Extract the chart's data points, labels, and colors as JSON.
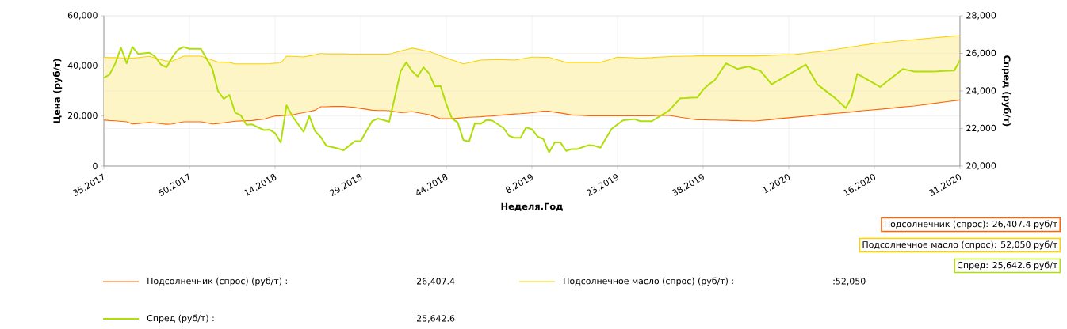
{
  "chart_data": {
    "type": "line",
    "xlabel": "Неделя.Год",
    "ylabel": "Цена (руб/т)",
    "y2label": "Спред (руб/т)",
    "categories": [
      "35.2017",
      null,
      null,
      null,
      null,
      null,
      null,
      null,
      null,
      null,
      null,
      null,
      null,
      null,
      null,
      "50.2017",
      null,
      null,
      null,
      null,
      null,
      null,
      null,
      null,
      null,
      null,
      null,
      null,
      null,
      null,
      "14.2018",
      null,
      null,
      null,
      null,
      null,
      null,
      null,
      null,
      null,
      null,
      null,
      null,
      null,
      null,
      "29.2018",
      null,
      null,
      null,
      null,
      null,
      null,
      null,
      null,
      null,
      null,
      null,
      null,
      null,
      null,
      "44.2018",
      null,
      null,
      null,
      null,
      null,
      null,
      null,
      null,
      null,
      null,
      null,
      null,
      null,
      null,
      "8.2019",
      null,
      null,
      null,
      null,
      null,
      null,
      null,
      null,
      null,
      null,
      null,
      null,
      null,
      null,
      "23.2019",
      null,
      null,
      null,
      null,
      null,
      null,
      null,
      null,
      null,
      null,
      null,
      null,
      null,
      null,
      "38.2019",
      null,
      null,
      null,
      null,
      null,
      null,
      null,
      null,
      null,
      null,
      null,
      null,
      null,
      null,
      "1.2020",
      null,
      null,
      null,
      null,
      null,
      null,
      null,
      null,
      null,
      null,
      null,
      null,
      null,
      null,
      "16.2020",
      null,
      null,
      null,
      null,
      null,
      null,
      null,
      null,
      null,
      null,
      null,
      null,
      null,
      null,
      "31.2020"
    ],
    "ylim": [
      0,
      60000
    ],
    "yticks": [
      {
        "value": 0,
        "label": "0"
      },
      {
        "value": 20000,
        "label": "20,000"
      },
      {
        "value": 40000,
        "label": "40,000"
      },
      {
        "value": 60000,
        "label": "60,000"
      }
    ],
    "y2lim": [
      20000,
      28000
    ],
    "y2ticks": [
      {
        "value": 20000,
        "label": "20,000"
      },
      {
        "value": 22000,
        "label": "22,000"
      },
      {
        "value": 24000,
        "label": "24,000"
      },
      {
        "value": 26000,
        "label": "26,000"
      },
      {
        "value": 28000,
        "label": "28,000"
      }
    ],
    "grid": true,
    "legend": "bottom",
    "series": [
      {
        "name": "Подсолнечник (спрос) (руб/т) :",
        "color": "#ff6600",
        "values": [
          18400,
          18200,
          18100,
          17900,
          17700,
          16800,
          17000,
          17200,
          17400,
          17200,
          16900,
          16700,
          16800,
          17300,
          17700,
          17700,
          17700,
          17700,
          17300,
          16800,
          17000,
          17300,
          17600,
          17900,
          18000,
          18100,
          18200,
          18500,
          18700,
          19400,
          20000,
          20100,
          20300,
          20400,
          20900,
          21300,
          21800,
          22300,
          23700,
          23700,
          23800,
          23800,
          23800,
          23600,
          23400,
          23000,
          22700,
          22300,
          22200,
          22200,
          22100,
          21700,
          21300,
          21500,
          21700,
          21300,
          20900,
          20500,
          19700,
          18900,
          18900,
          18900,
          19100,
          19300,
          19500,
          19600,
          19700,
          19900,
          20000,
          20200,
          20400,
          20600,
          20800,
          20900,
          21100,
          21300,
          21600,
          21900,
          21900,
          21500,
          21200,
          20800,
          20400,
          20300,
          20200,
          20100,
          20100,
          20100,
          20100,
          20100,
          20100,
          20100,
          20100,
          20100,
          20100,
          20100,
          20100,
          20200,
          20200,
          20200,
          19900,
          19500,
          19200,
          18800,
          18500,
          18500,
          18400,
          18400,
          18300,
          18300,
          18200,
          18200,
          18100,
          18100,
          18000,
          18200,
          18400,
          18600,
          18900,
          19100,
          19300,
          19500,
          19700,
          19900,
          20100,
          20400,
          20600,
          20800,
          21000,
          21200,
          21400,
          21600,
          21900,
          22100,
          22300,
          22500,
          22700,
          22900,
          23100,
          23400,
          23600,
          23800,
          24000,
          24300,
          24600,
          24900,
          25200,
          25500,
          25800,
          26100,
          26407.4
        ]
      },
      {
        "name": "Подсолнечное масло (спрос) (руб/т) :",
        "color": "#fcd202",
        "values": [
          43400,
          43300,
          43300,
          43200,
          43200,
          43100,
          43300,
          43600,
          43800,
          43200,
          42500,
          41900,
          41900,
          42900,
          43900,
          43900,
          43900,
          43900,
          43100,
          42300,
          41500,
          41500,
          41400,
          40800,
          40800,
          40800,
          40800,
          40800,
          40800,
          40900,
          41100,
          41200,
          43900,
          43800,
          43700,
          43600,
          44000,
          44400,
          45000,
          44800,
          44800,
          44800,
          44800,
          44700,
          44700,
          44700,
          44700,
          44700,
          44700,
          44700,
          44700,
          45300,
          45900,
          46500,
          47100,
          46700,
          46200,
          45800,
          44900,
          44000,
          43200,
          42400,
          41600,
          40800,
          41300,
          41800,
          42300,
          42400,
          42500,
          42600,
          42500,
          42400,
          42300,
          42700,
          43100,
          43500,
          43500,
          43400,
          43400,
          42700,
          42100,
          41400,
          41400,
          41400,
          41400,
          41400,
          41400,
          41400,
          42100,
          42800,
          43500,
          43400,
          43300,
          43200,
          43100,
          43200,
          43300,
          43500,
          43600,
          43700,
          43800,
          43800,
          43900,
          43900,
          44000,
          44000,
          44000,
          44000,
          44000,
          44000,
          44000,
          44000,
          44000,
          44000,
          44000,
          44100,
          44100,
          44200,
          44300,
          44400,
          44400,
          44500,
          44800,
          45100,
          45400,
          45600,
          45900,
          46200,
          46500,
          46900,
          47200,
          47600,
          47900,
          48300,
          48600,
          49000,
          49200,
          49400,
          49600,
          49900,
          50100,
          50300,
          50500,
          50700,
          50900,
          51100,
          51300,
          51500,
          51700,
          51900,
          52050
        ],
        "upper": [
          43400,
          43300,
          43300,
          43200,
          43200,
          43100,
          43300,
          43600,
          43800,
          43200,
          42500,
          41900,
          41900,
          42900,
          43900,
          43900,
          43900,
          43900,
          43100,
          42300,
          41500,
          41500,
          41400,
          40800,
          40800,
          40800,
          40800,
          40800,
          40800,
          40900,
          41100,
          41200,
          43900,
          43800,
          43700,
          43600,
          44000,
          44400,
          45000,
          44800,
          44800,
          44800,
          44800,
          44700,
          44700,
          44700,
          44700,
          44700,
          44700,
          44700,
          44700,
          45300,
          45900,
          46500,
          47100,
          46700,
          46200,
          45800,
          44900,
          44000,
          43200,
          42400,
          41600,
          40800,
          41300,
          41800,
          42300,
          42400,
          42500,
          42600,
          42500,
          42400,
          42300,
          42700,
          43100,
          43500,
          43500,
          43400,
          43400,
          42700,
          42100,
          41400,
          41400,
          41400,
          41400,
          41400,
          41400,
          41400,
          42100,
          42800,
          43500,
          43400,
          43300,
          43200,
          43100,
          43200,
          43300,
          43500,
          43600,
          43700,
          43800,
          43800,
          43900,
          43900,
          44000,
          44000,
          44000,
          44000,
          44000,
          44000,
          44000,
          44000,
          44000,
          44000,
          44000,
          44100,
          44100,
          44200,
          44300,
          44400,
          44400,
          44500,
          44800,
          45100,
          45400,
          45600,
          45900,
          46200,
          46500,
          46900,
          47200,
          47600,
          47900,
          48300,
          48600,
          49000,
          49200,
          49400,
          49600,
          49900,
          50100,
          50300,
          50500,
          50700,
          50900,
          51100,
          51300,
          51500,
          51700,
          51900,
          52050
        ],
        "lower": [
          18400,
          18200,
          18100,
          17900,
          17700,
          16800,
          17000,
          17200,
          17400,
          17200,
          16900,
          16700,
          16800,
          17300,
          17700,
          17700,
          17700,
          17700,
          17300,
          16800,
          17000,
          17300,
          17600,
          17900,
          18000,
          18100,
          18200,
          18500,
          18700,
          19400,
          20000,
          20100,
          20300,
          20400,
          20900,
          21300,
          21800,
          22300,
          23700,
          23700,
          23800,
          23800,
          23800,
          23600,
          23400,
          23000,
          22700,
          22300,
          22200,
          22200,
          22100,
          21700,
          21300,
          21500,
          21700,
          21300,
          20900,
          20500,
          19700,
          18900,
          18900,
          18900,
          19100,
          19300,
          19500,
          19600,
          19700,
          19900,
          20000,
          20200,
          20400,
          20600,
          20800,
          20900,
          21100,
          21300,
          21600,
          21900,
          21900,
          21500,
          21200,
          20800,
          20400,
          20300,
          20200,
          20100,
          20100,
          20100,
          20100,
          20100,
          20100,
          20100,
          20100,
          20100,
          20100,
          20100,
          20100,
          20200,
          20200,
          20200,
          19900,
          19500,
          19200,
          18800,
          18500,
          18500,
          18400,
          18400,
          18300,
          18300,
          18200,
          18200,
          18100,
          18100,
          18000,
          18200,
          18400,
          18600,
          18900,
          19100,
          19300,
          19500,
          19700,
          19900,
          20100,
          20400,
          20600,
          20800,
          21000,
          21200,
          21400,
          21600,
          21900,
          22100,
          22300,
          22500,
          22700,
          22900,
          23100,
          23400,
          23600,
          23800,
          24000,
          24300,
          24600,
          24900,
          25200,
          25500,
          25800,
          26100,
          26407.4
        ]
      },
      {
        "name": "Спред (руб/т) :",
        "color": "#b0de09",
        "axis": "y2",
        "values": [
          24700,
          24870,
          25470,
          26300,
          25470,
          26340,
          25970,
          26000,
          26030,
          25820,
          25400,
          25260,
          25800,
          26200,
          26340,
          26240,
          26240,
          26240,
          25720,
          25190,
          24000,
          23580,
          23790,
          22850,
          22700,
          22200,
          22220,
          22070,
          21920,
          21940,
          21750,
          21260,
          23230,
          22670,
          22250,
          21820,
          22670,
          21860,
          21550,
          21080,
          21010,
          20940,
          20840,
          21090,
          21330,
          21330,
          21860,
          22390,
          22530,
          22450,
          22360,
          23700,
          25050,
          25520,
          25050,
          24770,
          25260,
          24930,
          24240,
          24260,
          23300,
          22530,
          22320,
          21380,
          21310,
          22270,
          22250,
          22450,
          22430,
          22230,
          22030,
          21610,
          21500,
          21500,
          22060,
          21960,
          21570,
          21440,
          20730,
          21260,
          21260,
          20810,
          20910,
          20910,
          21020,
          21120,
          21080,
          20980,
          21490,
          21990,
          22220,
          22440,
          22470,
          22500,
          22390,
          22390,
          22390,
          22580,
          22760,
          22950,
          23280,
          23610,
          23620,
          23640,
          23650,
          24070,
          24350,
          24560,
          25020,
          25470,
          25320,
          25170,
          25240,
          25300,
          25170,
          25080,
          24720,
          24350,
          24530,
          24700,
          24880,
          25050,
          25230,
          25400,
          24880,
          24350,
          24120,
          23880,
          23650,
          23370,
          23090,
          23650,
          24910,
          24740,
          24560,
          24390,
          24210,
          24450,
          24690,
          24930,
          25170,
          25100,
          25030,
          25030,
          25030,
          25030,
          25040,
          25060,
          25070,
          25080,
          25642.6
        ]
      }
    ],
    "annotations": [
      "Подсолнечник (спрос): 26,407.4 руб/т",
      "Подсолнечное масло (спрос): 52,050 руб/т",
      "Спред: 25,642.6 руб/т",
      "26,407.4",
      ":52,050",
      "25,642.6"
    ]
  }
}
